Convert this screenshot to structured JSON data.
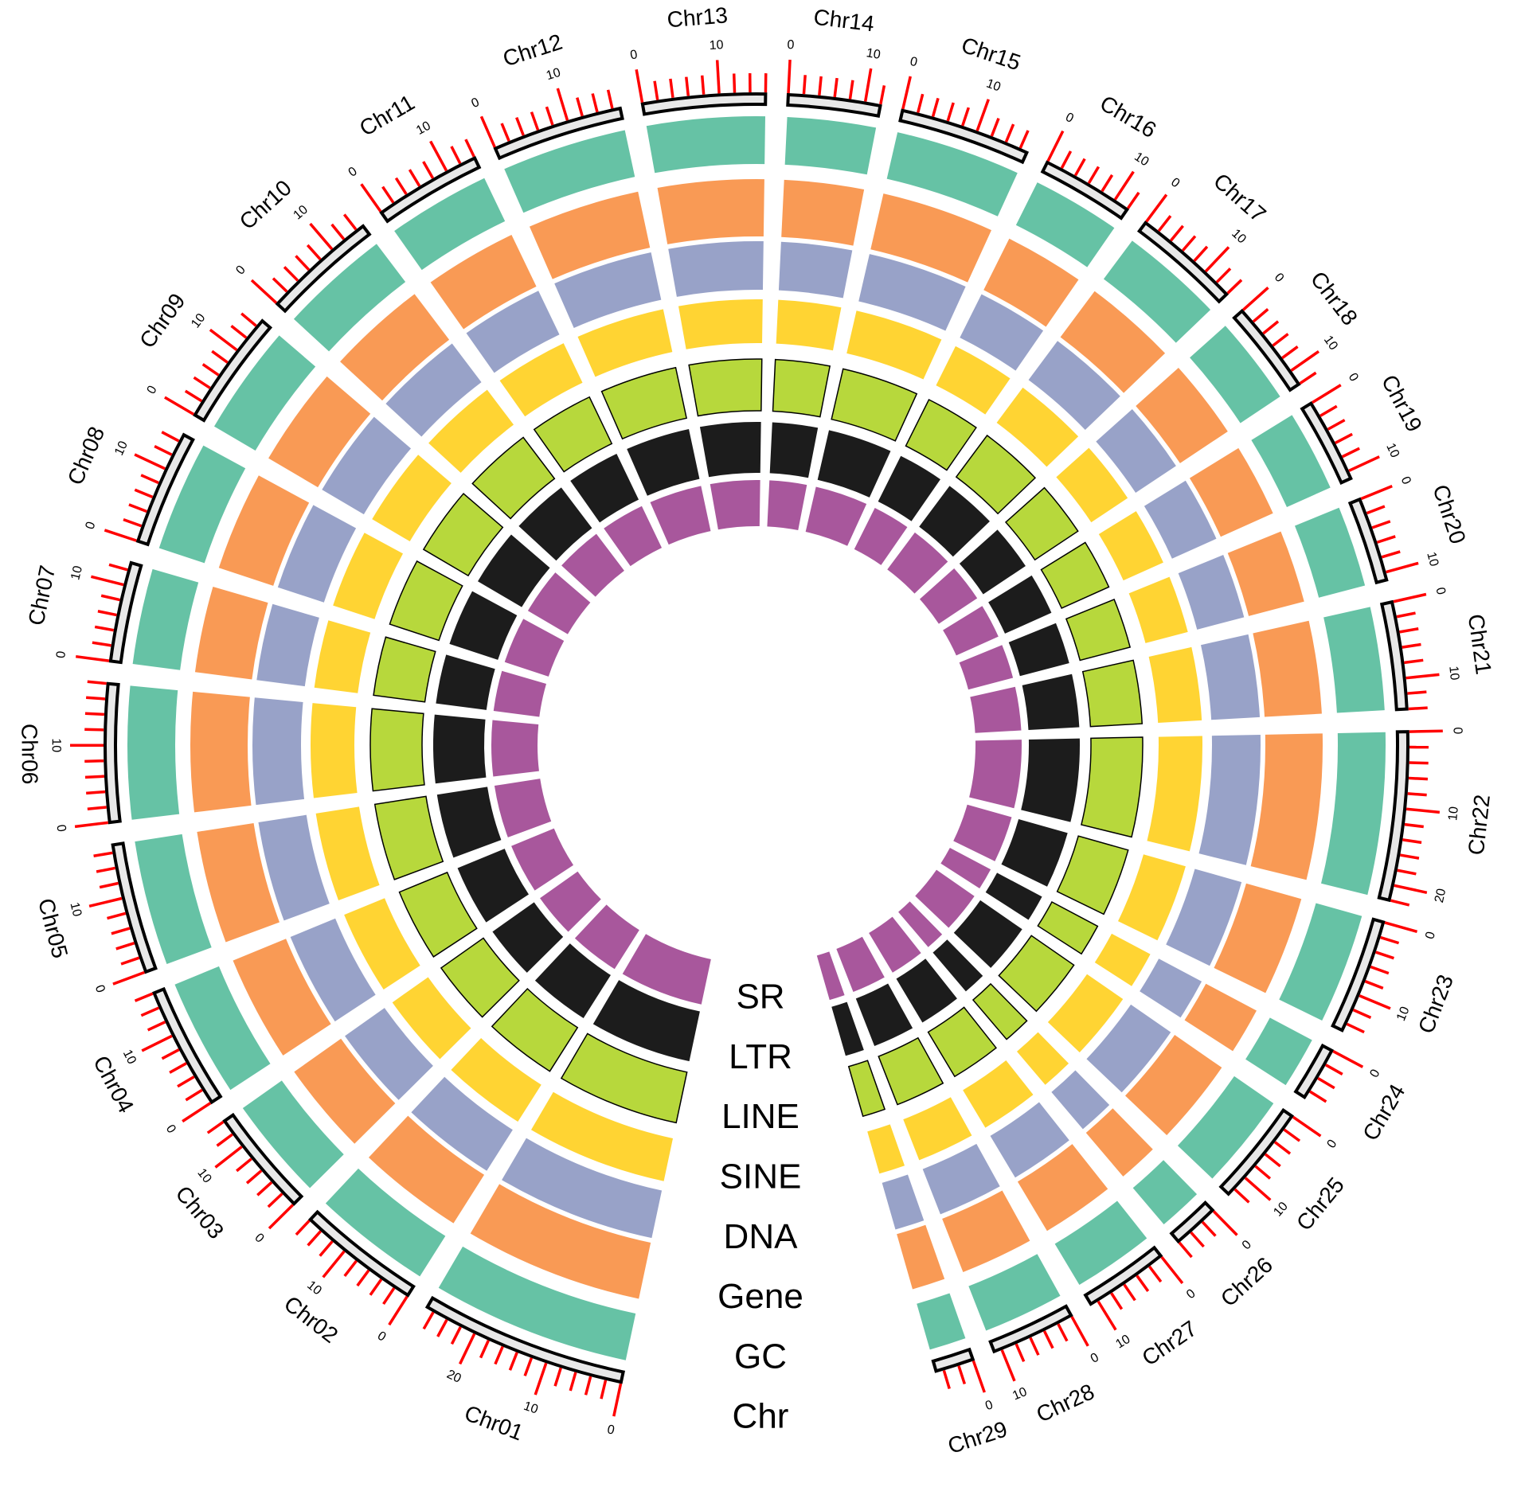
{
  "chart_data": {
    "type": "circos",
    "chromosomes": [
      {
        "name": "Chr01",
        "length": 27
      },
      {
        "name": "Chr02",
        "length": 16
      },
      {
        "name": "Chr03",
        "length": 14
      },
      {
        "name": "Chr04",
        "length": 16
      },
      {
        "name": "Chr05",
        "length": 17
      },
      {
        "name": "Chr06",
        "length": 18
      },
      {
        "name": "Chr07",
        "length": 13
      },
      {
        "name": "Chr08",
        "length": 15
      },
      {
        "name": "Chr09",
        "length": 15
      },
      {
        "name": "Chr10",
        "length": 15
      },
      {
        "name": "Chr11",
        "length": 14
      },
      {
        "name": "Chr12",
        "length": 17
      },
      {
        "name": "Chr13",
        "length": 16
      },
      {
        "name": "Chr14",
        "length": 12
      },
      {
        "name": "Chr15",
        "length": 17
      },
      {
        "name": "Chr16",
        "length": 12
      },
      {
        "name": "Chr17",
        "length": 14
      },
      {
        "name": "Chr18",
        "length": 12
      },
      {
        "name": "Chr19",
        "length": 11
      },
      {
        "name": "Chr20",
        "length": 11
      },
      {
        "name": "Chr21",
        "length": 14
      },
      {
        "name": "Chr22",
        "length": 22
      },
      {
        "name": "Chr23",
        "length": 15
      },
      {
        "name": "Chr24",
        "length": 7
      },
      {
        "name": "Chr25",
        "length": 13
      },
      {
        "name": "Chr26",
        "length": 6
      },
      {
        "name": "Chr27",
        "length": 11
      },
      {
        "name": "Chr28",
        "length": 11
      },
      {
        "name": "Chr29",
        "length": 5
      }
    ],
    "tick_labels": [
      0,
      10,
      20
    ],
    "tick_step": 2,
    "tracks": [
      {
        "name": "SR",
        "color": "#a8579c"
      },
      {
        "name": "LTR",
        "color": "#1c1c1c"
      },
      {
        "name": "LINE",
        "color": "#b7d83c",
        "outline": true
      },
      {
        "name": "SINE",
        "color": "#ffd433"
      },
      {
        "name": "DNA",
        "color": "#98a2c8"
      },
      {
        "name": "Gene",
        "color": "#f99a55"
      },
      {
        "name": "GC",
        "color": "#66c2a5"
      },
      {
        "name": "Chr",
        "color": "#e8e8e8",
        "outline": true
      }
    ],
    "tick_color": "#ff0000"
  }
}
